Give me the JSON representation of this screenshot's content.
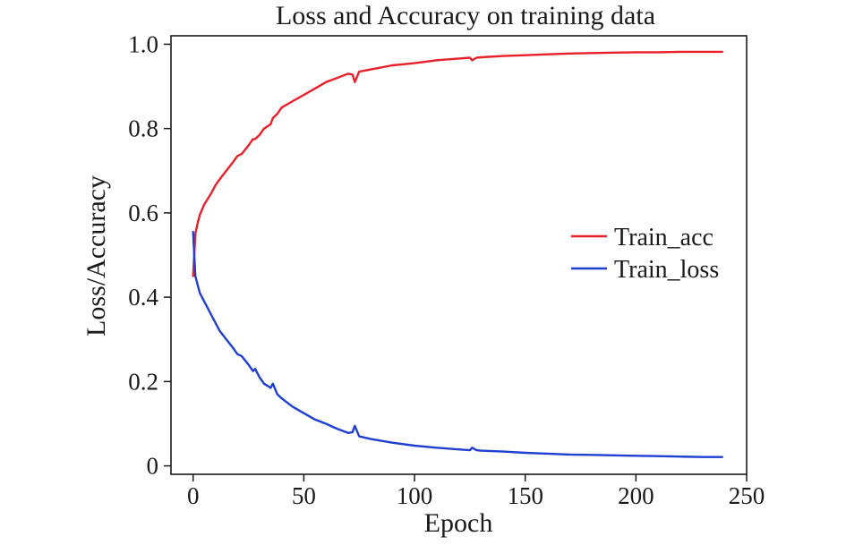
{
  "chart_data": {
    "type": "line",
    "title": "Loss and Accuracy on training data",
    "xlabel": "Epoch",
    "ylabel": "Loss/Accuracy",
    "xlim": [
      -10,
      250
    ],
    "ylim": [
      -0.02,
      1.02
    ],
    "xticks": [
      0,
      50,
      100,
      150,
      200,
      250
    ],
    "yticks": [
      0,
      0.2,
      0.4,
      0.6,
      0.8,
      1.0
    ],
    "xtick_labels": [
      "0",
      "50",
      "100",
      "150",
      "200",
      "250"
    ],
    "ytick_labels": [
      "0",
      "0.2",
      "0.4",
      "0.6",
      "0.8",
      "1.0"
    ],
    "grid": false,
    "legend_position": "right",
    "series": [
      {
        "name": "Train_acc",
        "color": "#e8202a",
        "x": [
          0,
          1,
          2,
          3,
          5,
          8,
          10,
          12,
          15,
          18,
          20,
          22,
          25,
          27,
          28,
          30,
          32,
          35,
          36,
          38,
          40,
          45,
          50,
          55,
          60,
          65,
          70,
          72,
          73,
          75,
          80,
          90,
          100,
          110,
          120,
          125,
          126,
          128,
          130,
          140,
          150,
          160,
          170,
          180,
          190,
          200,
          210,
          220,
          230,
          239
        ],
        "values": [
          0.45,
          0.55,
          0.575,
          0.595,
          0.62,
          0.645,
          0.665,
          0.68,
          0.7,
          0.72,
          0.735,
          0.74,
          0.76,
          0.775,
          0.775,
          0.785,
          0.8,
          0.81,
          0.825,
          0.835,
          0.85,
          0.865,
          0.88,
          0.895,
          0.91,
          0.92,
          0.93,
          0.928,
          0.91,
          0.935,
          0.94,
          0.95,
          0.955,
          0.962,
          0.966,
          0.968,
          0.962,
          0.968,
          0.969,
          0.972,
          0.974,
          0.976,
          0.978,
          0.979,
          0.98,
          0.981,
          0.981,
          0.982,
          0.982,
          0.982
        ]
      },
      {
        "name": "Train_loss",
        "color": "#1e3fd0",
        "x": [
          0,
          1,
          2,
          3,
          5,
          8,
          10,
          12,
          15,
          18,
          20,
          22,
          25,
          27,
          28,
          30,
          32,
          35,
          36,
          38,
          40,
          45,
          50,
          55,
          60,
          65,
          70,
          72,
          73,
          75,
          80,
          90,
          100,
          110,
          120,
          125,
          126,
          128,
          130,
          140,
          150,
          160,
          170,
          180,
          190,
          200,
          210,
          220,
          230,
          239
        ],
        "values": [
          0.555,
          0.45,
          0.43,
          0.41,
          0.39,
          0.36,
          0.34,
          0.32,
          0.3,
          0.28,
          0.265,
          0.26,
          0.24,
          0.225,
          0.23,
          0.21,
          0.195,
          0.185,
          0.195,
          0.17,
          0.16,
          0.14,
          0.125,
          0.11,
          0.1,
          0.088,
          0.078,
          0.08,
          0.095,
          0.07,
          0.064,
          0.055,
          0.048,
          0.043,
          0.039,
          0.037,
          0.043,
          0.037,
          0.036,
          0.034,
          0.031,
          0.029,
          0.027,
          0.026,
          0.025,
          0.024,
          0.023,
          0.022,
          0.021,
          0.021
        ]
      }
    ]
  }
}
